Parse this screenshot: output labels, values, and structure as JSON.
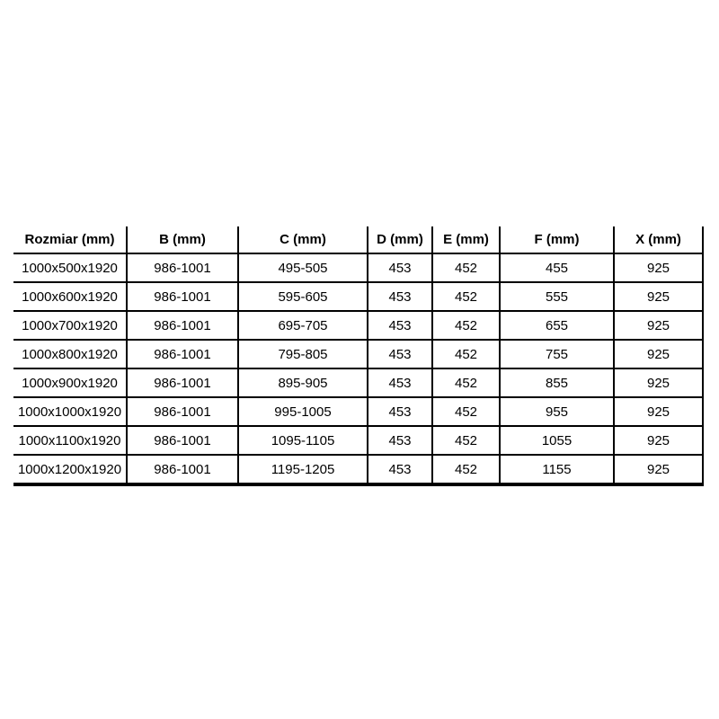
{
  "table": {
    "columns": [
      "Rozmiar (mm)",
      "B (mm)",
      "C (mm)",
      "D (mm)",
      "E (mm)",
      "F (mm)",
      "X (mm)"
    ],
    "rows": [
      [
        "1000x500x1920",
        "986-1001",
        "495-505",
        "453",
        "452",
        "455",
        "925"
      ],
      [
        "1000x600x1920",
        "986-1001",
        "595-605",
        "453",
        "452",
        "555",
        "925"
      ],
      [
        "1000x700x1920",
        "986-1001",
        "695-705",
        "453",
        "452",
        "655",
        "925"
      ],
      [
        "1000x800x1920",
        "986-1001",
        "795-805",
        "453",
        "452",
        "755",
        "925"
      ],
      [
        "1000x900x1920",
        "986-1001",
        "895-905",
        "453",
        "452",
        "855",
        "925"
      ],
      [
        "1000x1000x1920",
        "986-1001",
        "995-1005",
        "453",
        "452",
        "955",
        "925"
      ],
      [
        "1000x1100x1920",
        "986-1001",
        "1095-1105",
        "453",
        "452",
        "1055",
        "925"
      ],
      [
        "1000x1200x1920",
        "986-1001",
        "1195-1205",
        "453",
        "452",
        "1155",
        "925"
      ]
    ],
    "colors": {
      "text": "#000000",
      "border": "#000000",
      "background": "#ffffff"
    }
  }
}
